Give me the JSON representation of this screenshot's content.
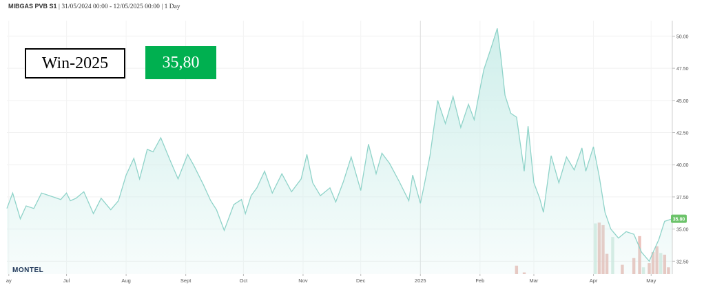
{
  "header": {
    "series_name": "MIBGAS PVB S1",
    "date_range": "31/05/2024 00:00 - 12/05/2025 00:00",
    "interval": "1 Day"
  },
  "contract_label": "Win-2025",
  "price_label": "35,80",
  "logo_text": "MONTEL",
  "colors": {
    "line": "#8fd3c9",
    "fill": "#cdeeea",
    "price_box": "#00b050",
    "last_badge": "#6cc36a",
    "volume_bar": "#e8b7b0",
    "volume_bar_alt": "#cfe8dd"
  },
  "chart_data": {
    "type": "area",
    "x_range": [
      "2024-05-31",
      "2025-05-12"
    ],
    "ylim": [
      31.5,
      51.2
    ],
    "y_axis_position": "right",
    "y_ticks": [
      "32.50",
      "35.00",
      "37.50",
      "40.00",
      "42.50",
      "45.00",
      "47.50",
      "50.00"
    ],
    "x_ticks": [
      {
        "date": "2024-06-01",
        "label": "ay"
      },
      {
        "date": "2024-07-01",
        "label": "Jul"
      },
      {
        "date": "2024-08-01",
        "label": "Aug"
      },
      {
        "date": "2024-09-01",
        "label": "Sept"
      },
      {
        "date": "2024-10-01",
        "label": "Oct"
      },
      {
        "date": "2024-11-01",
        "label": "Nov"
      },
      {
        "date": "2024-12-01",
        "label": "Dec"
      },
      {
        "date": "2025-01-01",
        "label": "2025"
      },
      {
        "date": "2025-02-01",
        "label": "Feb"
      },
      {
        "date": "2025-03-01",
        "label": "Mar"
      },
      {
        "date": "2025-04-01",
        "label": "Apr"
      },
      {
        "date": "2025-05-01",
        "label": "May"
      }
    ],
    "grid": true,
    "last_value_label": "35.80",
    "series": [
      {
        "x": [
          "2024-05-31",
          "2024-06-03",
          "2024-06-07",
          "2024-06-10",
          "2024-06-14",
          "2024-06-18",
          "2024-06-24",
          "2024-06-28",
          "2024-07-01",
          "2024-07-03",
          "2024-07-06",
          "2024-07-10",
          "2024-07-15",
          "2024-07-19",
          "2024-07-24",
          "2024-07-28",
          "2024-08-01",
          "2024-08-05",
          "2024-08-08",
          "2024-08-12",
          "2024-08-15",
          "2024-08-19",
          "2024-08-24",
          "2024-08-28",
          "2024-09-02",
          "2024-09-05",
          "2024-09-10",
          "2024-09-14",
          "2024-09-17",
          "2024-09-21",
          "2024-09-26",
          "2024-09-30",
          "2024-10-02",
          "2024-10-05",
          "2024-10-08",
          "2024-10-12",
          "2024-10-16",
          "2024-10-21",
          "2024-10-26",
          "2024-10-31",
          "2024-11-03",
          "2024-11-06",
          "2024-11-10",
          "2024-11-15",
          "2024-11-18",
          "2024-11-22",
          "2024-11-26",
          "2024-12-01",
          "2024-12-05",
          "2024-12-09",
          "2024-12-12",
          "2024-12-16",
          "2024-12-21",
          "2024-12-26",
          "2024-12-28",
          "2025-01-01",
          "2025-01-03",
          "2025-01-06",
          "2025-01-10",
          "2025-01-14",
          "2025-01-18",
          "2025-01-22",
          "2025-01-26",
          "2025-01-29",
          "2025-02-01",
          "2025-02-03",
          "2025-02-07",
          "2025-02-10",
          "2025-02-12",
          "2025-02-14",
          "2025-02-17",
          "2025-02-20",
          "2025-02-24",
          "2025-02-26",
          "2025-03-01",
          "2025-03-04",
          "2025-03-06",
          "2025-03-10",
          "2025-03-14",
          "2025-03-18",
          "2025-03-22",
          "2025-03-26",
          "2025-03-28",
          "2025-04-01",
          "2025-04-04",
          "2025-04-07",
          "2025-04-10",
          "2025-04-14",
          "2025-04-18",
          "2025-04-22",
          "2025-04-26",
          "2025-04-30",
          "2025-05-02",
          "2025-05-05",
          "2025-05-08",
          "2025-05-12"
        ],
        "values": [
          36.6,
          37.8,
          35.8,
          36.8,
          36.6,
          37.8,
          37.5,
          37.3,
          37.8,
          37.2,
          37.4,
          37.9,
          36.2,
          37.4,
          36.5,
          37.2,
          39.2,
          40.5,
          38.9,
          41.2,
          41.0,
          42.1,
          40.3,
          38.9,
          40.8,
          40.0,
          38.5,
          37.2,
          36.5,
          34.9,
          36.9,
          37.3,
          36.2,
          37.6,
          38.2,
          39.5,
          37.8,
          39.3,
          37.9,
          38.9,
          40.8,
          38.6,
          37.6,
          38.2,
          37.1,
          38.7,
          40.6,
          38.0,
          41.6,
          39.3,
          40.9,
          40.1,
          38.7,
          37.2,
          39.2,
          37.0,
          38.4,
          40.7,
          45.0,
          43.2,
          45.3,
          42.9,
          44.7,
          43.5,
          45.9,
          47.4,
          49.2,
          50.6,
          48.2,
          45.4,
          44.0,
          43.7,
          39.5,
          43.0,
          38.6,
          37.4,
          36.3,
          40.7,
          38.6,
          40.6,
          39.6,
          41.3,
          39.5,
          41.4,
          39.1,
          36.3,
          35.0,
          34.3,
          34.8,
          34.6,
          33.2,
          32.5,
          33.2,
          34.2,
          35.6,
          35.8
        ]
      }
    ],
    "volume_bars": [
      {
        "date": "2025-02-20",
        "value": 1
      },
      {
        "date": "2025-02-24",
        "value": 0.2
      },
      {
        "date": "2025-04-02",
        "value": 6
      },
      {
        "date": "2025-04-04",
        "value": 6.1
      },
      {
        "date": "2025-04-06",
        "value": 5.8
      },
      {
        "date": "2025-04-08",
        "value": 2.4
      },
      {
        "date": "2025-04-11",
        "value": 4.4
      },
      {
        "date": "2025-04-16",
        "value": 1.1
      },
      {
        "date": "2025-04-22",
        "value": 1.9
      },
      {
        "date": "2025-04-25",
        "value": 4.5
      },
      {
        "date": "2025-04-27",
        "value": 0.8
      },
      {
        "date": "2025-04-30",
        "value": 1.3
      },
      {
        "date": "2025-05-02",
        "value": 2.6
      },
      {
        "date": "2025-05-04",
        "value": 3.3
      },
      {
        "date": "2025-05-06",
        "value": 2.5
      },
      {
        "date": "2025-05-08",
        "value": 2.3
      },
      {
        "date": "2025-05-10",
        "value": 0.8
      }
    ]
  }
}
